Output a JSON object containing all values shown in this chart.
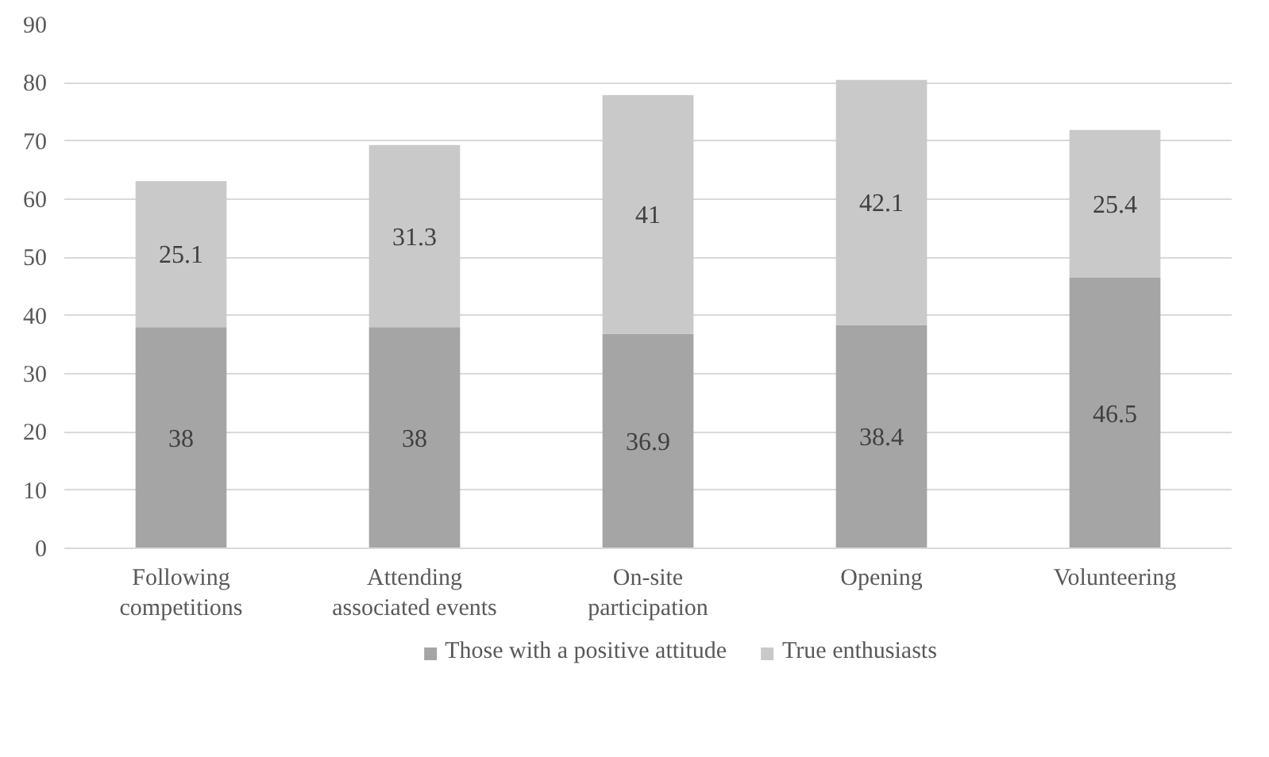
{
  "chart_data": {
    "type": "bar",
    "stacked": true,
    "categories": [
      "Following\ncompetitions",
      "Attending\nassociated events",
      "On-site\nparticipation",
      "Opening",
      "Volunteering"
    ],
    "series": [
      {
        "name": "Those with a positive attitude",
        "color": "#a5a5a5",
        "values": [
          38,
          38,
          36.9,
          38.4,
          46.5
        ]
      },
      {
        "name": "True enthusiasts",
        "color": "#c9c9c9",
        "values": [
          25.1,
          31.3,
          41,
          42.1,
          25.4
        ]
      }
    ],
    "ylim": [
      0,
      90
    ],
    "yticks": [
      0,
      10,
      20,
      30,
      40,
      50,
      60,
      70,
      80,
      90
    ],
    "grid": "y",
    "legend": "bottom",
    "data_labels": true
  }
}
